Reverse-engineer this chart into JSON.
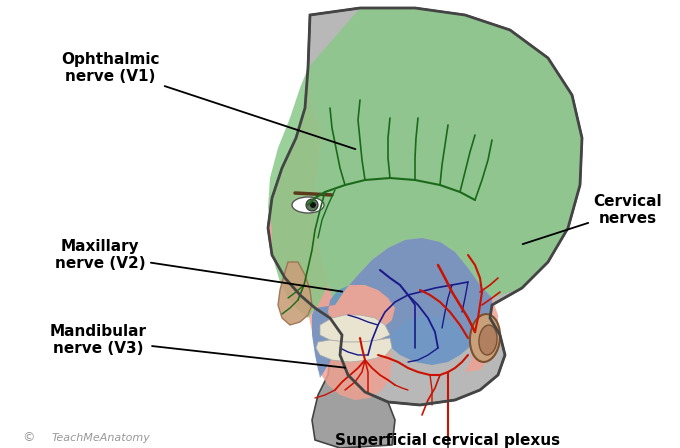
{
  "background_color": "#ffffff",
  "labels": {
    "ophthalmic": "Ophthalmic\nnerve (V1)",
    "maxillary": "Maxillary\nnerve (V2)",
    "mandibular": "Mandibular\nnerve (V3)",
    "cervical": "Cervical\nnerves",
    "superficial": "Superficial cervical plexus",
    "watermark": "TeachMeAnatomy"
  },
  "colors": {
    "green_region": "#88c888",
    "blue_region": "#6090c8",
    "pink_region": "#f0a090",
    "gray_head": "#b8b8b8",
    "gray_neck": "#a0a0a0",
    "nerve_green": "#1a6a1a",
    "nerve_blue": "#1a1a8a",
    "nerve_red": "#cc1100",
    "outline": "#444444",
    "skin": "#d4a882",
    "teeth": "#e8e4d0"
  }
}
